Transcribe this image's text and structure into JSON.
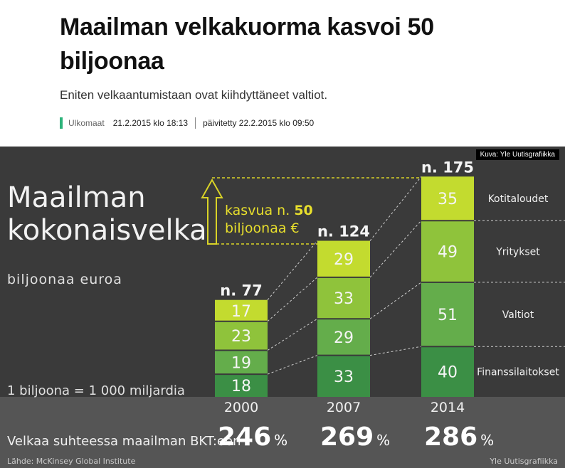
{
  "article": {
    "title": "Maailman velkakuorma kasvoi 50 biljoonaa",
    "lead": "Eniten velkaantumistaan ovat kiihdyttäneet valtiot.",
    "category": "Ulkomaat",
    "published": "21.2.2015 klo 18:13",
    "updated": "päivitetty 22.2.2015 klo 09:50",
    "category_color": "#2db37a"
  },
  "image": {
    "credit": "Kuva: Yle Uutisgrafiikka"
  },
  "infographic": {
    "title_line1": "Maailman",
    "title_line2": "kokonaisvelka",
    "unit": "biljoonaa euroa",
    "footnote": "1 biljoona = 1 000 miljardia",
    "growth_line1": "kasvua n. ",
    "growth_value": "50",
    "growth_line2": "biljoonaa €",
    "gdp_label": "Velkaa suhteessa maailman BKT:een",
    "source": "Lähde: McKinsey Global Institute",
    "producer": "Yle Uutisgrafiikka",
    "percent_sign": "%"
  },
  "chart_data": {
    "type": "bar",
    "stacked": true,
    "categories": [
      "2000",
      "2007",
      "2014"
    ],
    "totals": [
      "n. 77",
      "n. 124",
      "n. 175"
    ],
    "gdp_ratio": [
      "246",
      "269",
      "286"
    ],
    "series": [
      {
        "name": "Finanssilaitokset",
        "values": [
          18,
          33,
          40
        ],
        "color": "#3b8f45"
      },
      {
        "name": "Valtiot",
        "values": [
          19,
          29,
          51
        ],
        "color": "#64ad4b"
      },
      {
        "name": "Yritykset",
        "values": [
          23,
          33,
          49
        ],
        "color": "#8fc33b"
      },
      {
        "name": "Kotitaloudet",
        "values": [
          17,
          29,
          35
        ],
        "color": "#c3db2f"
      }
    ]
  }
}
